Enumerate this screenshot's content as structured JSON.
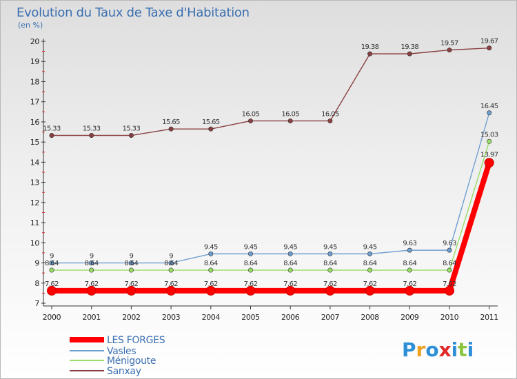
{
  "header": {
    "title": "Evolution du Taux de Taxe d'Habitation",
    "subtitle": "(en %)"
  },
  "brand": {
    "letters": [
      "P",
      "r",
      "o",
      "x",
      "i",
      "t",
      "i"
    ],
    "colors": [
      "#2f8fd6",
      "#f0a020",
      "#2f8fd6",
      "#e0282a",
      "#2f8fd6",
      "#8cc63f",
      "#2f8fd6"
    ]
  },
  "chart_data": {
    "type": "line",
    "title": "Evolution du Taux de Taxe d'Habitation",
    "subtitle": "(en %)",
    "xlabel": "",
    "ylabel": "",
    "x": [
      "2000",
      "2001",
      "2002",
      "2003",
      "2004",
      "2005",
      "2006",
      "2007",
      "2008",
      "2009",
      "2010",
      "2011"
    ],
    "ylim": [
      7,
      20
    ],
    "yticks": [
      "7",
      "8",
      "9",
      "10",
      "11",
      "12",
      "13",
      "14",
      "15",
      "16",
      "17",
      "18",
      "19",
      "20"
    ],
    "grid": false,
    "legend_position": "bottom-left",
    "series": [
      {
        "name": "LES FORGES",
        "color": "#ff0000",
        "values": [
          7.62,
          7.62,
          7.62,
          7.62,
          7.62,
          7.62,
          7.62,
          7.62,
          7.62,
          7.62,
          7.62,
          13.97
        ],
        "labels": [
          "7.62",
          "7.62",
          "7.62",
          "7.62",
          "7.62",
          "7.62",
          "7.62",
          "7.62",
          "7.62",
          "7.62",
          "7.62",
          "13.97"
        ]
      },
      {
        "name": "Vasles",
        "color": "#6f9fd0",
        "values": [
          9,
          9,
          9,
          9,
          9.45,
          9.45,
          9.45,
          9.45,
          9.45,
          9.63,
          9.63,
          16.45
        ],
        "labels": [
          "9",
          "9",
          "9",
          "9",
          "9.45",
          "9.45",
          "9.45",
          "9.45",
          "9.45",
          "9.63",
          "9.63",
          "16.45"
        ]
      },
      {
        "name": "Ménigoute",
        "color": "#99dd66",
        "values": [
          8.64,
          8.64,
          8.64,
          8.64,
          8.64,
          8.64,
          8.64,
          8.64,
          8.64,
          8.64,
          8.64,
          15.03
        ],
        "labels": [
          "8.64",
          "8.64",
          "8.64",
          "8.64",
          "8.64",
          "8.64",
          "8.64",
          "8.64",
          "8.64",
          "8.64",
          "8.64",
          "15.03"
        ]
      },
      {
        "name": "Sanxay",
        "color": "#8a4040",
        "values": [
          15.33,
          15.33,
          15.33,
          15.65,
          15.65,
          16.05,
          16.05,
          16.05,
          19.38,
          19.38,
          19.57,
          19.67
        ],
        "labels": [
          "15.33",
          "15.33",
          "15.33",
          "15.65",
          "15.65",
          "16.05",
          "16.05",
          "16.05",
          "19.38",
          "19.38",
          "19.57",
          "19.67"
        ]
      }
    ]
  }
}
